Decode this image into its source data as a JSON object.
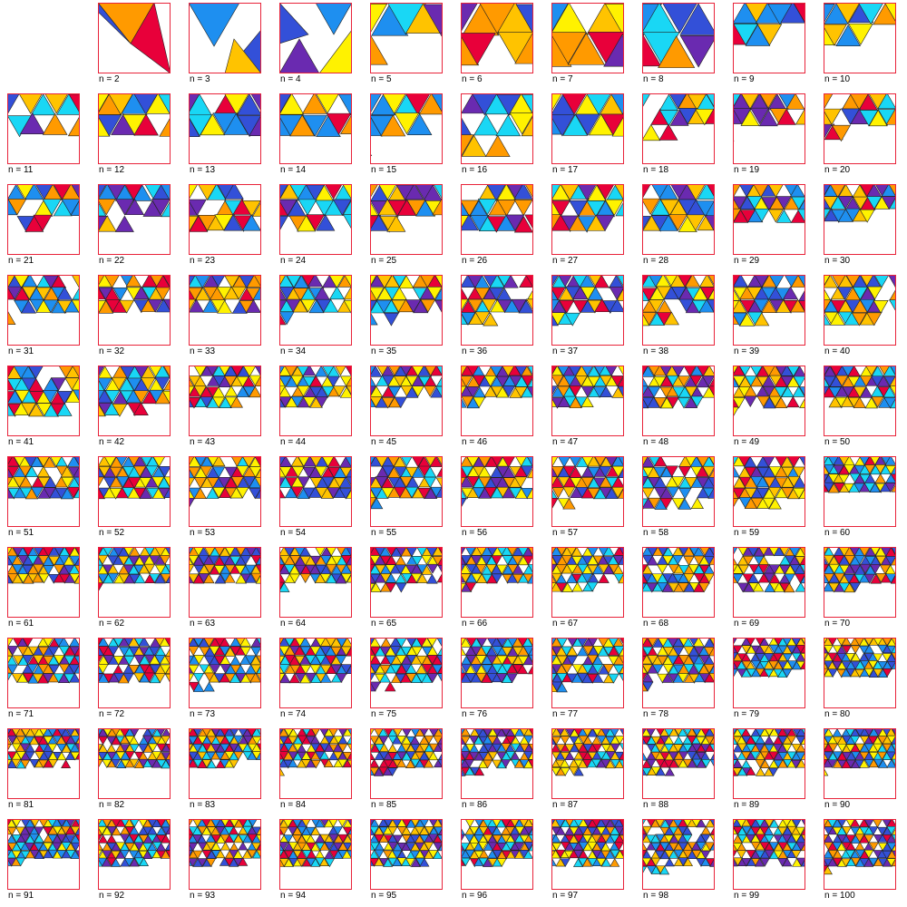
{
  "label_prefix": "n = ",
  "n_values": [
    2,
    3,
    4,
    5,
    6,
    7,
    8,
    9,
    10,
    11,
    12,
    13,
    14,
    15,
    16,
    17,
    18,
    19,
    20,
    21,
    22,
    23,
    24,
    25,
    26,
    27,
    28,
    29,
    30,
    31,
    32,
    33,
    34,
    35,
    36,
    37,
    38,
    39,
    40,
    41,
    42,
    43,
    44,
    45,
    46,
    47,
    48,
    49,
    50,
    51,
    52,
    53,
    54,
    55,
    56,
    57,
    58,
    59,
    60,
    61,
    62,
    63,
    64,
    65,
    66,
    67,
    68,
    69,
    70,
    71,
    72,
    73,
    74,
    75,
    76,
    77,
    78,
    79,
    80,
    81,
    82,
    83,
    84,
    85,
    86,
    87,
    88,
    89,
    90,
    91,
    92,
    93,
    94,
    95,
    96,
    97,
    98,
    99,
    100
  ],
  "colors": {
    "palette": [
      "#FFF200",
      "#1E8FF0",
      "#6A2AB0",
      "#FF9A00",
      "#E8003A",
      "#19D7F5",
      "#3350D8",
      "#FFC300"
    ],
    "square_border": "#E8233A",
    "triangle_stroke": "#222222",
    "label_text": "#000000"
  }
}
